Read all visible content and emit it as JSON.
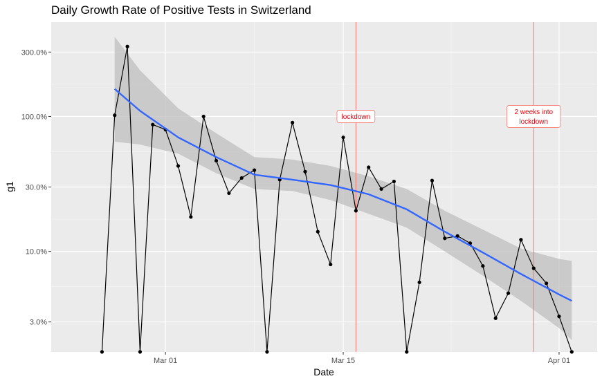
{
  "chart_data": {
    "type": "line",
    "title": "Daily Growth Rate of Positive Tests in Switzerland",
    "xlabel": "Date",
    "ylabel": "g1",
    "x_axis": {
      "type": "date",
      "range": [
        "2020-02-21",
        "2020-04-04"
      ],
      "ticks": [
        {
          "date": "2020-03-01",
          "label": "Mar 01"
        },
        {
          "date": "2020-03-15",
          "label": "Mar 15"
        },
        {
          "date": "2020-04-01",
          "label": "Apr 01"
        }
      ]
    },
    "y_axis": {
      "scale": "log10",
      "range": [
        0.018,
        5.0
      ],
      "ticks": [
        {
          "value": 0.03,
          "label": "3.0%"
        },
        {
          "value": 0.1,
          "label": "10.0%"
        },
        {
          "value": 0.3,
          "label": "30.0%"
        },
        {
          "value": 1.0,
          "label": "100.0%"
        },
        {
          "value": 3.0,
          "label": "300.0%"
        }
      ]
    },
    "grid": true,
    "series": [
      {
        "kind": "observed",
        "color": "#000000",
        "points": [
          {
            "date": "2020-02-25",
            "value": 0.018
          },
          {
            "date": "2020-02-26",
            "value": 1.02
          },
          {
            "date": "2020-02-27",
            "value": 3.3
          },
          {
            "date": "2020-02-28",
            "value": 0.018
          },
          {
            "date": "2020-02-29",
            "value": 0.87
          },
          {
            "date": "2020-03-01",
            "value": 0.8
          },
          {
            "date": "2020-03-02",
            "value": 0.43
          },
          {
            "date": "2020-03-03",
            "value": 0.18
          },
          {
            "date": "2020-03-04",
            "value": 1.0
          },
          {
            "date": "2020-03-05",
            "value": 0.47
          },
          {
            "date": "2020-03-06",
            "value": 0.27
          },
          {
            "date": "2020-03-07",
            "value": 0.35
          },
          {
            "date": "2020-03-08",
            "value": 0.4
          },
          {
            "date": "2020-03-09",
            "value": 0.018
          },
          {
            "date": "2020-03-10",
            "value": 0.34
          },
          {
            "date": "2020-03-11",
            "value": 0.9
          },
          {
            "date": "2020-03-12",
            "value": 0.39
          },
          {
            "date": "2020-03-13",
            "value": 0.14
          },
          {
            "date": "2020-03-14",
            "value": 0.08
          },
          {
            "date": "2020-03-15",
            "value": 0.7
          },
          {
            "date": "2020-03-16",
            "value": 0.2
          },
          {
            "date": "2020-03-17",
            "value": 0.42
          },
          {
            "date": "2020-03-18",
            "value": 0.29
          },
          {
            "date": "2020-03-19",
            "value": 0.33
          },
          {
            "date": "2020-03-20",
            "value": 0.018
          },
          {
            "date": "2020-03-21",
            "value": 0.059
          },
          {
            "date": "2020-03-22",
            "value": 0.335
          },
          {
            "date": "2020-03-23",
            "value": 0.125
          },
          {
            "date": "2020-03-24",
            "value": 0.13
          },
          {
            "date": "2020-03-25",
            "value": 0.115
          },
          {
            "date": "2020-03-26",
            "value": 0.078
          },
          {
            "date": "2020-03-27",
            "value": 0.032
          },
          {
            "date": "2020-03-28",
            "value": 0.049
          },
          {
            "date": "2020-03-29",
            "value": 0.122
          },
          {
            "date": "2020-03-30",
            "value": 0.075
          },
          {
            "date": "2020-03-31",
            "value": 0.058
          },
          {
            "date": "2020-04-01",
            "value": 0.033
          },
          {
            "date": "2020-04-02",
            "value": 0.018
          }
        ]
      },
      {
        "kind": "smooth",
        "color": "#3366ff",
        "band_color": "#bfbfbf",
        "points": [
          {
            "date": "2020-02-26",
            "value": 1.6,
            "low": 0.65,
            "high": 3.9
          },
          {
            "date": "2020-02-28",
            "value": 1.1,
            "low": 0.62,
            "high": 2.2
          },
          {
            "date": "2020-03-02",
            "value": 0.7,
            "low": 0.53,
            "high": 1.15
          },
          {
            "date": "2020-03-05",
            "value": 0.5,
            "low": 0.38,
            "high": 0.75
          },
          {
            "date": "2020-03-08",
            "value": 0.37,
            "low": 0.29,
            "high": 0.5
          },
          {
            "date": "2020-03-11",
            "value": 0.34,
            "low": 0.28,
            "high": 0.48
          },
          {
            "date": "2020-03-14",
            "value": 0.31,
            "low": 0.24,
            "high": 0.43
          },
          {
            "date": "2020-03-17",
            "value": 0.265,
            "low": 0.19,
            "high": 0.36
          },
          {
            "date": "2020-03-20",
            "value": 0.205,
            "low": 0.15,
            "high": 0.29
          },
          {
            "date": "2020-03-23",
            "value": 0.14,
            "low": 0.1,
            "high": 0.2
          },
          {
            "date": "2020-03-26",
            "value": 0.098,
            "low": 0.066,
            "high": 0.145
          },
          {
            "date": "2020-03-29",
            "value": 0.068,
            "low": 0.043,
            "high": 0.105
          },
          {
            "date": "2020-04-01",
            "value": 0.048,
            "low": 0.027,
            "high": 0.088
          },
          {
            "date": "2020-04-02",
            "value": 0.043,
            "low": 0.022,
            "high": 0.085
          }
        ]
      }
    ],
    "annotations": [
      {
        "date": "2020-03-16",
        "label_lines": [
          "lockdown"
        ],
        "label_value": 1.0,
        "color": "#f8766d"
      },
      {
        "date": "2020-03-30",
        "label_lines": [
          "2 weeks into",
          "lockdown"
        ],
        "label_value": 1.0,
        "color": "#f8766d"
      }
    ]
  }
}
